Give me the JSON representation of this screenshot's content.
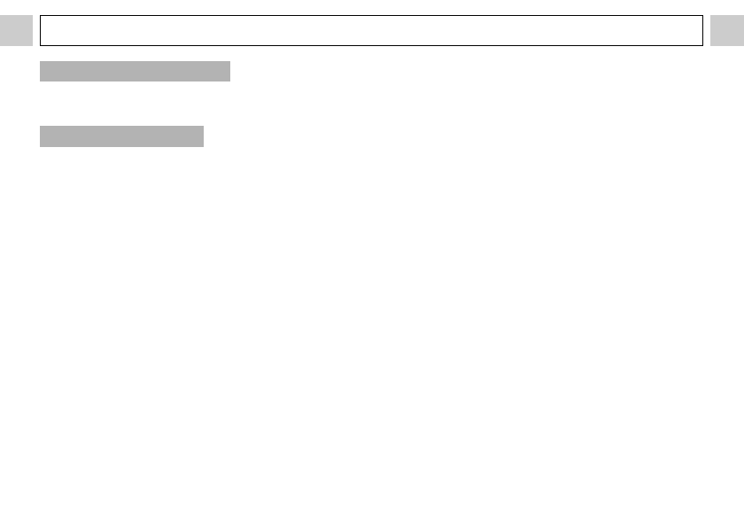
{
  "search": {
    "value": "",
    "placeholder": ""
  },
  "colors": {
    "side_button": "#cccccc",
    "placeholder_bar": "#b3b3b3",
    "input_border": "#000000"
  }
}
